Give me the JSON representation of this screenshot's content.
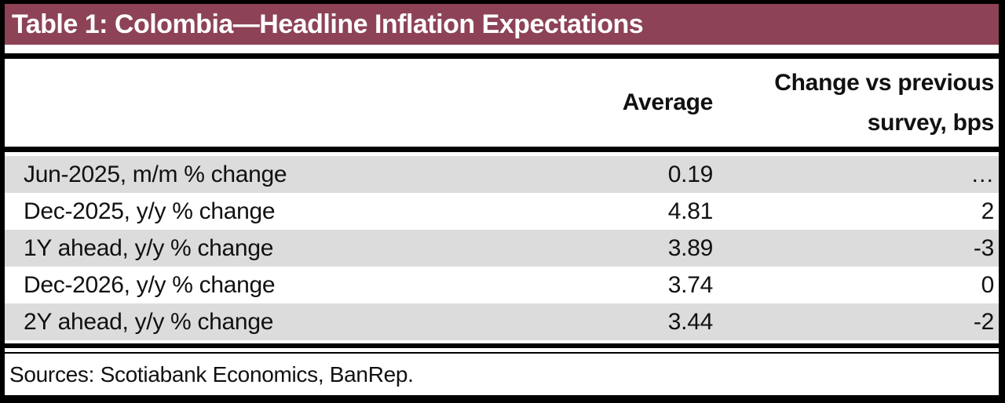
{
  "title": "Table 1: Colombia—Headline Inflation Expectations",
  "colors": {
    "title_bar_bg": "#8D4256",
    "title_text": "#FFFFFF",
    "alt_row_bg": "#DCDCDC",
    "rule": "#000000",
    "body_text": "#111111"
  },
  "table": {
    "col_average_label": "Average",
    "col_change_line1": "Change vs previous",
    "col_change_line2": "survey, bps",
    "rows": [
      {
        "label": "Jun-2025, m/m % change",
        "average": "0.19",
        "change": "…"
      },
      {
        "label": "Dec-2025, y/y % change",
        "average": "4.81",
        "change": "2"
      },
      {
        "label": "1Y ahead, y/y % change",
        "average": "3.89",
        "change": "-3"
      },
      {
        "label": "Dec-2026, y/y % change",
        "average": "3.74",
        "change": "0"
      },
      {
        "label": "2Y ahead, y/y % change",
        "average": "3.44",
        "change": "-2"
      }
    ]
  },
  "footer": {
    "sources": "Sources: Scotiabank Economics, BanRep."
  },
  "chart_data": {
    "type": "table",
    "title": "Table 1: Colombia—Headline Inflation Expectations",
    "columns": [
      "",
      "Average",
      "Change vs previous survey, bps"
    ],
    "rows": [
      [
        "Jun-2025, m/m % change",
        0.19,
        null
      ],
      [
        "Dec-2025, y/y % change",
        4.81,
        2
      ],
      [
        "1Y ahead, y/y % change",
        3.89,
        -3
      ],
      [
        "Dec-2026, y/y % change",
        3.74,
        0
      ],
      [
        "2Y ahead, y/y % change",
        3.44,
        -2
      ]
    ],
    "source_note": "Sources: Scotiabank Economics, BanRep.",
    "layout_hints": {
      "alternating_row_shading": true,
      "value_columns_right_aligned": true,
      "no_vertical_gridlines": true
    }
  }
}
